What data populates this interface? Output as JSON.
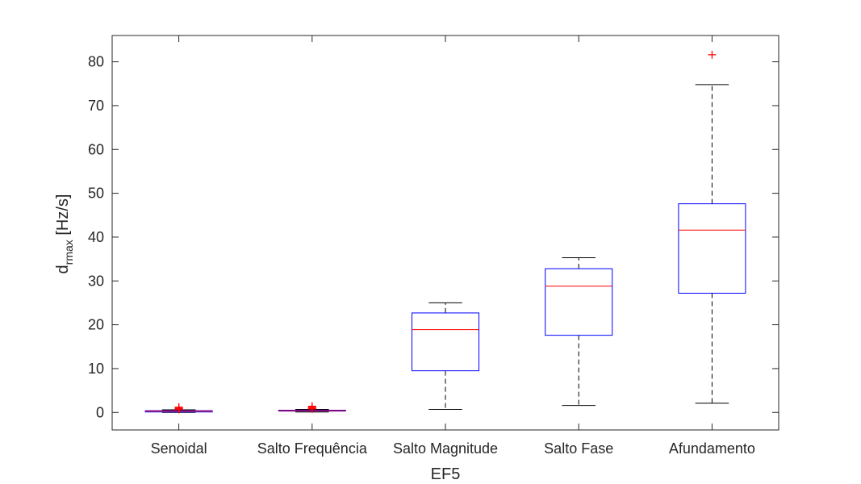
{
  "chart_data": {
    "type": "boxplot",
    "xlabel": "EF5",
    "ylabel": "d",
    "ylabel_subscript": "rmax",
    "ylabel_unit": " [Hz/s]",
    "ylim": [
      -4,
      86
    ],
    "yticks": [
      0,
      10,
      20,
      30,
      40,
      50,
      60,
      70,
      80
    ],
    "grid": false,
    "categories": [
      "Senoidal",
      "Salto Frequência",
      "Salto Magnitude",
      "Salto Fase",
      "Afundamento"
    ],
    "boxes": [
      {
        "whisker_low": 0.0,
        "q1": 0.1,
        "median": 0.3,
        "q3": 0.4,
        "whisker_high": 0.6,
        "outliers": [
          0.7,
          0.8,
          0.9,
          1.0,
          1.2
        ]
      },
      {
        "whisker_low": 0.1,
        "q1": 0.3,
        "median": 0.4,
        "q3": 0.5,
        "whisker_high": 0.7,
        "outliers": [
          0.8,
          0.9,
          1.0,
          1.2,
          1.4
        ]
      },
      {
        "whisker_low": 0.7,
        "q1": 9.5,
        "median": 18.9,
        "q3": 22.7,
        "whisker_high": 25.0,
        "outliers": []
      },
      {
        "whisker_low": 1.6,
        "q1": 17.6,
        "median": 28.8,
        "q3": 32.8,
        "whisker_high": 35.3,
        "outliers": []
      },
      {
        "whisker_low": 2.1,
        "q1": 27.2,
        "median": 41.6,
        "q3": 47.6,
        "whisker_high": 74.8,
        "outliers": [
          81.6
        ]
      }
    ],
    "colors": {
      "box": "#0000ff",
      "median": "#ff0000",
      "whisker": "#000000",
      "outlier": "#ff0000",
      "axis": "#262626"
    }
  }
}
